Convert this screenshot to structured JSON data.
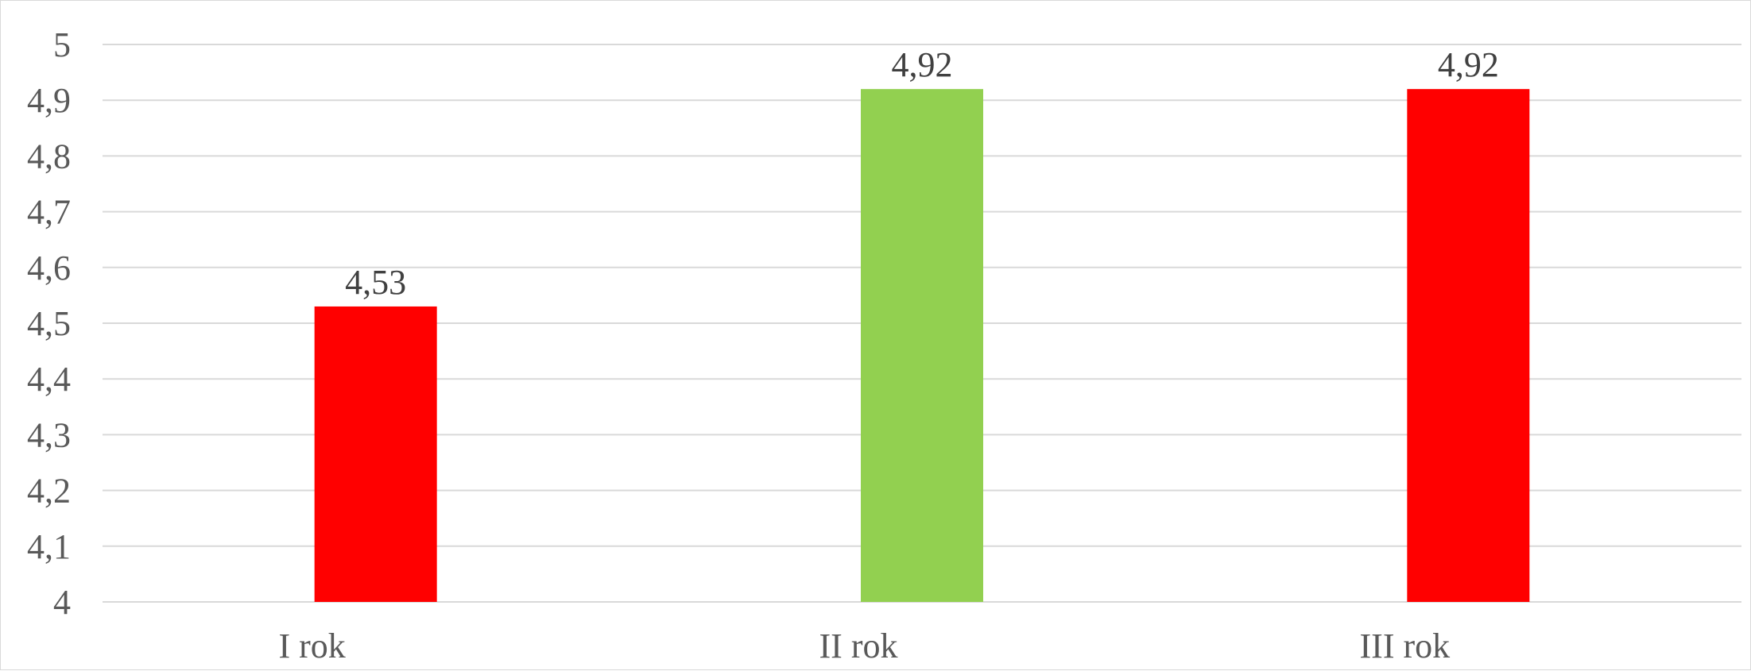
{
  "chart_data": {
    "type": "bar",
    "title": "",
    "xlabel": "",
    "ylabel": "",
    "categories": [
      "I rok",
      "II rok",
      "III rok"
    ],
    "values": [
      4.53,
      4.92,
      4.92
    ],
    "value_labels": [
      "4,53",
      "4,92",
      "4,92"
    ],
    "bar_colors": [
      "#ff0000",
      "#92d050",
      "#ff0000"
    ],
    "ylim": [
      4,
      5
    ],
    "y_ticks": [
      4,
      4.1,
      4.2,
      4.3,
      4.4,
      4.5,
      4.6,
      4.7,
      4.8,
      4.9,
      5
    ],
    "y_tick_labels": [
      "4",
      "4,1",
      "4,2",
      "4,3",
      "4,4",
      "4,5",
      "4,6",
      "4,7",
      "4,8",
      "4,9",
      "5"
    ],
    "grid": true,
    "legend": "none"
  }
}
